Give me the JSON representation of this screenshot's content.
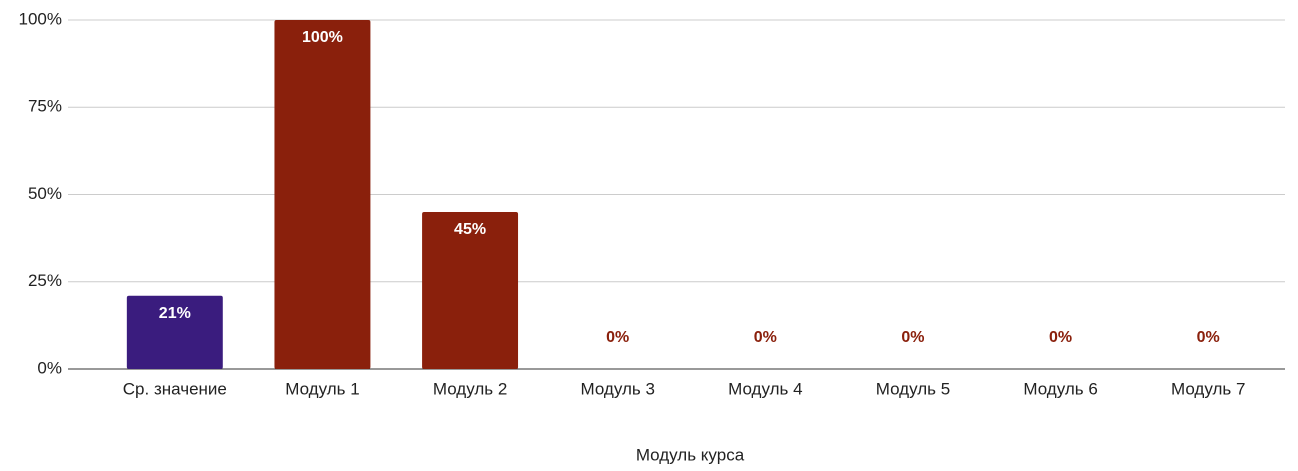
{
  "chart_data": {
    "type": "bar",
    "x_label": "Модуль курса",
    "categories": [
      "Ср. значение",
      "Модуль 1",
      "Модуль 2",
      "Модуль 3",
      "Модуль 4",
      "Модуль 5",
      "Модуль 6",
      "Модуль 7"
    ],
    "values": [
      21,
      100,
      45,
      0,
      0,
      0,
      0,
      0
    ],
    "value_labels": [
      "21%",
      "100%",
      "45%",
      "0%",
      "0%",
      "0%",
      "0%",
      "0%"
    ],
    "colors": [
      "#3a1c7e",
      "#8a200c",
      "#8a200c",
      "#8a200c",
      "#8a200c",
      "#8a200c",
      "#8a200c",
      "#8a200c"
    ],
    "ylim": [
      0,
      100
    ],
    "yticks": [
      {
        "value": 0,
        "label": "0%"
      },
      {
        "value": 25,
        "label": "25%"
      },
      {
        "value": 50,
        "label": "50%"
      },
      {
        "value": 75,
        "label": "75%"
      },
      {
        "value": 100,
        "label": "100%"
      }
    ],
    "grid": true
  }
}
